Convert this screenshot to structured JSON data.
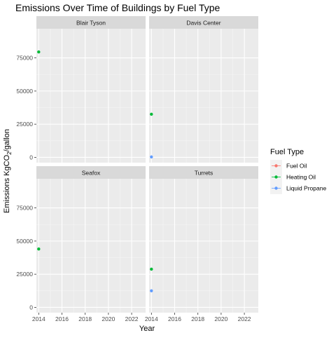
{
  "chart_data": {
    "type": "scatter",
    "title": "Emissions Over Time of Buildings by Fuel Type",
    "xlabel": "Year",
    "ylabel_main": "Emissions KgCO",
    "ylabel_sub": "2",
    "ylabel_tail": "/gallon",
    "xlim": [
      2013.8,
      2023.2
    ],
    "ylim": [
      -4000,
      97000
    ],
    "x_ticks": [
      2014,
      2016,
      2018,
      2020,
      2022
    ],
    "y_ticks": [
      0,
      25000,
      50000,
      75000
    ],
    "grid": true,
    "legend": {
      "title": "Fuel Type",
      "position": "right",
      "entries": [
        {
          "name": "Fuel Oil",
          "color": "#F8766D"
        },
        {
          "name": "Heating Oil",
          "color": "#00BA38"
        },
        {
          "name": "Liquid Propane",
          "color": "#619CFF"
        }
      ]
    },
    "facets": [
      {
        "name": "Blair Tyson",
        "points": [
          {
            "x": 2014,
            "y": 79500,
            "series": "Heating Oil"
          }
        ]
      },
      {
        "name": "Davis Center",
        "points": [
          {
            "x": 2014,
            "y": 32500,
            "series": "Heating Oil"
          },
          {
            "x": 2014,
            "y": 300,
            "series": "Liquid Propane"
          }
        ]
      },
      {
        "name": "Seafox",
        "points": [
          {
            "x": 2014,
            "y": 44000,
            "series": "Heating Oil"
          }
        ]
      },
      {
        "name": "Turrets",
        "points": [
          {
            "x": 2014,
            "y": 28800,
            "series": "Heating Oil"
          },
          {
            "x": 2014,
            "y": 12500,
            "series": "Liquid Propane"
          }
        ]
      }
    ]
  }
}
